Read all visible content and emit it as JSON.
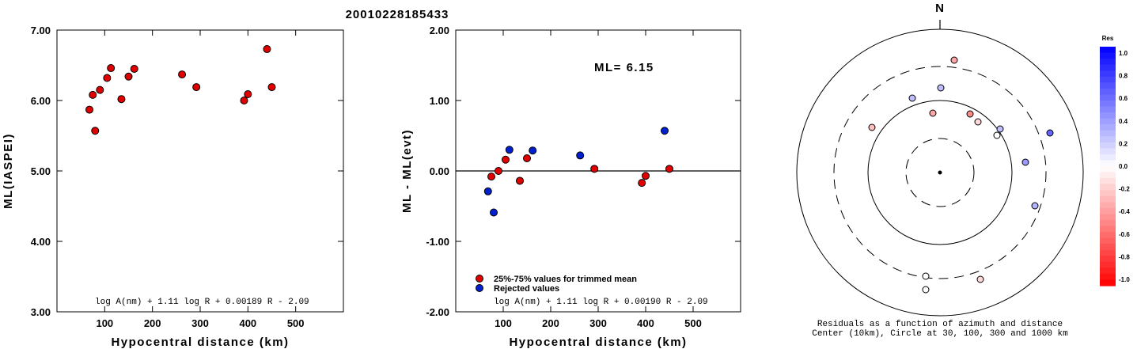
{
  "title": "20010228185433",
  "chart_data": [
    {
      "type": "scatter",
      "id": "left",
      "xlabel": "Hypocentral distance (km)",
      "ylabel": "ML(IASPEI)",
      "xlim": [
        0,
        600
      ],
      "ylim": [
        3.0,
        7.0
      ],
      "xticks": [
        100,
        200,
        300,
        400,
        500
      ],
      "yticks": [
        3.0,
        4.0,
        5.0,
        6.0,
        7.0
      ],
      "ytick_labels": [
        "3.00",
        "4.00",
        "5.00",
        "6.00",
        "7.00"
      ],
      "formula": "log A(nm) + 1.11 log R + 0.00189 R - 2.09",
      "points": [
        {
          "x": 68,
          "y": 5.87,
          "color": "#e00000"
        },
        {
          "x": 75,
          "y": 6.08,
          "color": "#e00000"
        },
        {
          "x": 80,
          "y": 5.57,
          "color": "#e00000"
        },
        {
          "x": 90,
          "y": 6.15,
          "color": "#e00000"
        },
        {
          "x": 105,
          "y": 6.32,
          "color": "#e00000"
        },
        {
          "x": 113,
          "y": 6.46,
          "color": "#e00000"
        },
        {
          "x": 135,
          "y": 6.02,
          "color": "#e00000"
        },
        {
          "x": 150,
          "y": 6.34,
          "color": "#e00000"
        },
        {
          "x": 162,
          "y": 6.45,
          "color": "#e00000"
        },
        {
          "x": 262,
          "y": 6.37,
          "color": "#e00000"
        },
        {
          "x": 292,
          "y": 6.19,
          "color": "#e00000"
        },
        {
          "x": 392,
          "y": 6.0,
          "color": "#e00000"
        },
        {
          "x": 400,
          "y": 6.09,
          "color": "#e00000"
        },
        {
          "x": 440,
          "y": 6.73,
          "color": "#e00000"
        },
        {
          "x": 450,
          "y": 6.19,
          "color": "#e00000"
        }
      ]
    },
    {
      "type": "scatter",
      "id": "middle",
      "xlabel": "Hypocentral distance (km)",
      "ylabel": "ML - ML(evt)",
      "xlim": [
        0,
        600
      ],
      "ylim": [
        -2.0,
        2.0
      ],
      "xticks": [
        100,
        200,
        300,
        400,
        500
      ],
      "yticks": [
        -2.0,
        -1.0,
        0.0,
        1.0,
        2.0
      ],
      "ytick_labels": [
        "-2.00",
        "-1.00",
        "0.00",
        "1.00",
        "2.00"
      ],
      "annotation": "ML= 6.15",
      "formula": "log A(nm) + 1.11 log R + 0.00190 R - 2.09",
      "legend": [
        {
          "label": "25%-75% values for trimmed mean",
          "color": "#e00000"
        },
        {
          "label": "Rejected values",
          "color": "#0020d0"
        }
      ],
      "points": [
        {
          "x": 68,
          "y": -0.29,
          "color": "#0020d0"
        },
        {
          "x": 75,
          "y": -0.08,
          "color": "#e00000"
        },
        {
          "x": 80,
          "y": -0.59,
          "color": "#0020d0"
        },
        {
          "x": 90,
          "y": 0.0,
          "color": "#e00000"
        },
        {
          "x": 105,
          "y": 0.16,
          "color": "#e00000"
        },
        {
          "x": 113,
          "y": 0.3,
          "color": "#0020d0"
        },
        {
          "x": 135,
          "y": -0.14,
          "color": "#e00000"
        },
        {
          "x": 150,
          "y": 0.18,
          "color": "#e00000"
        },
        {
          "x": 162,
          "y": 0.29,
          "color": "#0020d0"
        },
        {
          "x": 262,
          "y": 0.22,
          "color": "#0020d0"
        },
        {
          "x": 292,
          "y": 0.03,
          "color": "#e00000"
        },
        {
          "x": 392,
          "y": -0.17,
          "color": "#e00000"
        },
        {
          "x": 400,
          "y": -0.07,
          "color": "#e00000"
        },
        {
          "x": 440,
          "y": 0.57,
          "color": "#0020d0"
        },
        {
          "x": 450,
          "y": 0.03,
          "color": "#e00000"
        }
      ]
    },
    {
      "type": "polar-scatter",
      "id": "right",
      "north_label": "N",
      "caption_line1": "Residuals as a function of azimuth and distance",
      "caption_line2": "Center (10km), Circle at 30, 100, 300 and 1000 km",
      "colorbar": {
        "title": "Res",
        "ticks": [
          "1.0",
          "0.8",
          "0.6",
          "0.4",
          "0.2",
          "0.0",
          "-0.2",
          "-0.4",
          "-0.6",
          "-0.8",
          "-1.0"
        ],
        "max_color": "#0000ff",
        "zero_color": "#ffffff",
        "min_color": "#ff0000"
      },
      "points": [
        {
          "dx": 18,
          "dy": -142,
          "res": -0.35
        },
        {
          "dx": 1,
          "dy": -107,
          "res": 0.25
        },
        {
          "dx": -35,
          "dy": -94,
          "res": 0.25
        },
        {
          "dx": -86,
          "dy": -57,
          "res": -0.25
        },
        {
          "dx": -9,
          "dy": -75,
          "res": -0.35
        },
        {
          "dx": 38,
          "dy": -74,
          "res": -0.45
        },
        {
          "dx": 48,
          "dy": -64,
          "res": -0.15
        },
        {
          "dx": 72,
          "dy": -47,
          "res": 0.0
        },
        {
          "dx": 76,
          "dy": -55,
          "res": 0.25
        },
        {
          "dx": 139,
          "dy": -50,
          "res": 0.6
        },
        {
          "dx": 108,
          "dy": -13,
          "res": 0.4
        },
        {
          "dx": 120,
          "dy": 42,
          "res": 0.3
        },
        {
          "dx": -18,
          "dy": 131,
          "res": 0.0
        },
        {
          "dx": 51,
          "dy": 135,
          "res": -0.15
        },
        {
          "dx": -18,
          "dy": 148,
          "res": 0.0
        }
      ]
    }
  ]
}
